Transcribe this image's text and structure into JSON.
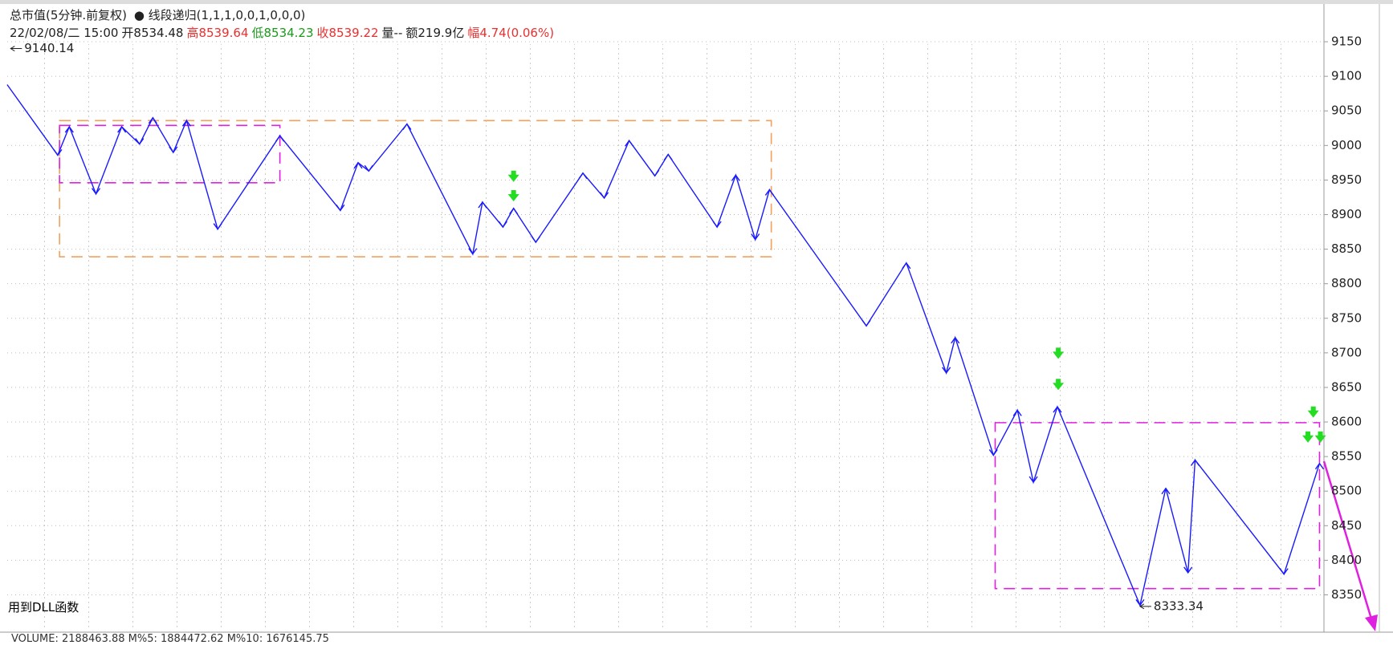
{
  "header": {
    "title": "总市值(5分钟.前复权)",
    "indicator": "线段递归(1,1,1,0,0,1,0,0,0)",
    "datetime": "22/02/08/二 15:00",
    "open": "开8534.48",
    "high": "高8539.64",
    "low": "低8534.23",
    "close": "收8539.22",
    "volume": "量--",
    "amount": "额219.9亿",
    "change": "幅4.74(0.06%)"
  },
  "chart_data": {
    "type": "line",
    "color": "#1a1aff",
    "x": [
      8,
      65,
      78,
      108,
      137,
      157,
      172,
      195,
      210,
      245,
      315,
      383,
      403,
      415,
      458,
      532,
      543,
      566,
      578,
      603,
      656,
      680,
      708,
      737,
      752,
      807,
      828,
      850,
      866,
      975,
      1020,
      1065,
      1075,
      1118,
      1145,
      1163,
      1190,
      1283,
      1312,
      1337,
      1345,
      1445,
      1485
    ],
    "values": [
      9088,
      8986,
      9027,
      8930,
      9027,
      9002,
      9040,
      8990,
      9036,
      8879,
      9014,
      8906,
      8975,
      8963,
      9031,
      8843,
      8918,
      8882,
      8909,
      8860,
      8960,
      8924,
      9007,
      8956,
      8987,
      8882,
      8957,
      8864,
      8936,
      8739,
      8830,
      8671,
      8722,
      8552,
      8617,
      8513,
      8622,
      8335,
      8504,
      8382,
      8545,
      8380,
      8540
    ],
    "xlim": [
      0,
      1490
    ],
    "ylim": [
      8296,
      9204
    ],
    "yticks": [
      8350,
      8400,
      8450,
      8500,
      8550,
      8600,
      8650,
      8700,
      8750,
      8800,
      8850,
      8900,
      8950,
      9000,
      9050,
      9100,
      9150
    ],
    "grid": true,
    "boxes": [
      {
        "xlim": [
          67,
          868
        ],
        "ylim": [
          8839,
          9036
        ],
        "color": "#f5a05a"
      },
      {
        "xlim": [
          67,
          315
        ],
        "ylim": [
          8946,
          9029
        ],
        "color": "#e020e0"
      },
      {
        "xlim": [
          1120,
          1485
        ],
        "ylim": [
          8359,
          8599
        ],
        "color": "#e020e0"
      }
    ],
    "signals": {
      "color": "#22dd22",
      "x": [
        578,
        578,
        1191,
        1191,
        1478,
        1472,
        1486
      ],
      "values": [
        8953,
        8925,
        8697,
        8652,
        8612,
        8576,
        8576
      ]
    },
    "annotations": [
      {
        "text": "9140.14",
        "x": 12,
        "value": 9140.14
      },
      {
        "text": "8333.34",
        "x": 1283,
        "value": 8333.34
      }
    ]
  },
  "footer": {
    "note": "用到DLL函数",
    "volume": "VOLUME: 2188463.88  M%5: 1884472.62  M%10: 1676145.75"
  }
}
